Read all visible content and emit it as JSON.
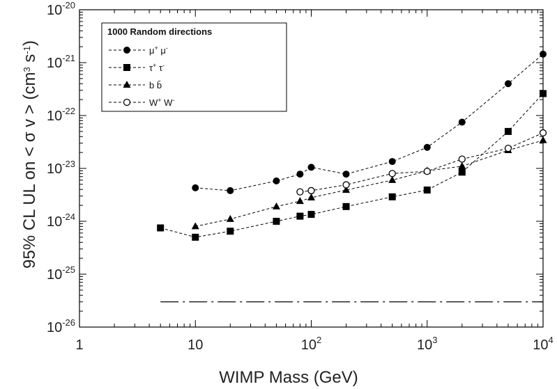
{
  "chart_data": {
    "type": "line",
    "xscale": "log",
    "yscale": "log",
    "xlim": [
      1,
      10000
    ],
    "ylim": [
      1e-26,
      1e-20
    ],
    "xlabel": "WIMP Mass (GeV)",
    "ylabel_parts": [
      "95% CL UL on < σ v > (cm",
      "3",
      " s",
      "-1",
      ")"
    ],
    "x_ticks": [
      {
        "value": 1,
        "base": "1",
        "exp": ""
      },
      {
        "value": 10,
        "base": "10",
        "exp": ""
      },
      {
        "value": 100,
        "base": "10",
        "exp": "2"
      },
      {
        "value": 1000,
        "base": "10",
        "exp": "3"
      },
      {
        "value": 10000,
        "base": "10",
        "exp": "4"
      }
    ],
    "y_ticks": [
      {
        "value": 1e-26,
        "base": "10",
        "exp": "-26"
      },
      {
        "value": 1e-25,
        "base": "10",
        "exp": "-25"
      },
      {
        "value": 1e-24,
        "base": "10",
        "exp": "-24"
      },
      {
        "value": 1e-23,
        "base": "10",
        "exp": "-23"
      },
      {
        "value": 1e-22,
        "base": "10",
        "exp": "-22"
      },
      {
        "value": 1e-21,
        "base": "10",
        "exp": "-21"
      },
      {
        "value": 1e-20,
        "base": "10",
        "exp": "-20"
      }
    ],
    "legend": {
      "title": "1000 Random directions",
      "placement": "top-left"
    },
    "series": [
      {
        "name_parts": [
          "μ",
          "+",
          " μ",
          "-"
        ],
        "marker": "filled-circle",
        "points": [
          [
            10,
            4.3e-24
          ],
          [
            20,
            3.8e-24
          ],
          [
            50,
            5.8e-24
          ],
          [
            80,
            7.8e-24
          ],
          [
            100,
            1.05e-23
          ],
          [
            200,
            7.8e-24
          ],
          [
            500,
            1.35e-23
          ],
          [
            1000,
            2.5e-23
          ],
          [
            2000,
            7.5e-23
          ],
          [
            5000,
            4e-22
          ],
          [
            10000,
            1.45e-21
          ]
        ]
      },
      {
        "name_parts": [
          "τ",
          "+",
          " τ",
          "-"
        ],
        "marker": "filled-square",
        "points": [
          [
            5,
            7.5e-25
          ],
          [
            10,
            5e-25
          ],
          [
            20,
            6.5e-25
          ],
          [
            50,
            1e-24
          ],
          [
            80,
            1.25e-24
          ],
          [
            100,
            1.35e-24
          ],
          [
            200,
            1.9e-24
          ],
          [
            500,
            2.9e-24
          ],
          [
            1000,
            3.9e-24
          ],
          [
            2000,
            8.5e-24
          ],
          [
            5000,
            5e-23
          ],
          [
            10000,
            2.6e-22
          ]
        ]
      },
      {
        "name_parts": [
          "b b̄"
        ],
        "marker": "filled-triangle",
        "points": [
          [
            10,
            8e-25
          ],
          [
            20,
            1.1e-24
          ],
          [
            50,
            1.9e-24
          ],
          [
            80,
            2.4e-24
          ],
          [
            100,
            2.8e-24
          ],
          [
            200,
            3.9e-24
          ],
          [
            500,
            6e-24
          ],
          [
            1000,
            9e-24
          ],
          [
            2000,
            1.1e-23
          ],
          [
            5000,
            2.2e-23
          ],
          [
            10000,
            3.4e-23
          ]
        ]
      },
      {
        "name_parts": [
          "W",
          "+",
          " W",
          "-"
        ],
        "marker": "open-circle",
        "points": [
          [
            80,
            3.6e-24
          ],
          [
            100,
            3.8e-24
          ],
          [
            200,
            4.9e-24
          ],
          [
            500,
            8e-24
          ],
          [
            1000,
            8.8e-24
          ],
          [
            2000,
            1.5e-23
          ],
          [
            5000,
            2.4e-23
          ],
          [
            10000,
            4.7e-23
          ]
        ]
      }
    ],
    "reference_line": {
      "style": "dash-dot",
      "y": 3e-26,
      "x_range": [
        5,
        10000
      ]
    }
  }
}
